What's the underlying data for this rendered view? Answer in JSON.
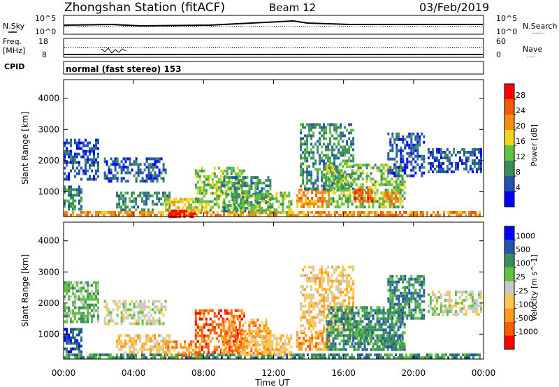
{
  "header": {
    "title": "Zhongshan Station (fitACF)",
    "beam": "Beam 12",
    "date": "03/Feb/2019"
  },
  "sky_panel": {
    "label": "N.Sky",
    "left_ticks": [
      "10^5",
      "10^0"
    ],
    "right_label": "N.Search",
    "right_ticks": [
      "10^5",
      "10^0"
    ],
    "legend_dots": "......."
  },
  "freq_panel": {
    "label_line1": "Freq.",
    "label_line2": "[MHz]",
    "left_ticks": [
      "18",
      "8"
    ],
    "right_label": "Nave",
    "right_ticks": [
      "60",
      "0"
    ],
    "legend_dots": "...."
  },
  "cpid": {
    "label": "CPID",
    "text": "normal (fast stereo) 153"
  },
  "colors": {
    "power": [
      "#0000ff",
      "#2255aa",
      "#3a8c5a",
      "#5fc13f",
      "#f2d21b",
      "#f28c12",
      "#f0580e",
      "#ff0000"
    ],
    "velocity": [
      "#ff0000",
      "#ff5a00",
      "#ff9a1a",
      "#ffc84d",
      "#c8c8c8",
      "#5fc13f",
      "#3a8c5a",
      "#2255aa",
      "#0000ff"
    ]
  },
  "chart_data": [
    {
      "type": "heatmap",
      "name": "power",
      "ylabel": "Slant Range [km]",
      "y_ticks": [
        1000,
        2000,
        3000,
        4000
      ],
      "ylim": [
        200,
        4600
      ],
      "x_ticks": [
        "00:00",
        "04:00",
        "08:00",
        "12:00",
        "16:00",
        "20:00",
        "00:00"
      ],
      "colorbar": {
        "label": "Power [dB]",
        "ticks": [
          "4",
          "8",
          "12",
          "16",
          "20",
          "24",
          "28"
        ]
      },
      "blobs": [
        {
          "t0": 0.0,
          "t1": 23.8,
          "r0": 220,
          "r1": 380,
          "level": 5
        },
        {
          "t0": 0.0,
          "t1": 1.0,
          "r0": 400,
          "r1": 1200,
          "level": 2
        },
        {
          "t0": 0.0,
          "t1": 2.0,
          "r0": 1400,
          "r1": 2700,
          "level": 1
        },
        {
          "t0": 2.3,
          "t1": 5.8,
          "r0": 1300,
          "r1": 2100,
          "level": 1
        },
        {
          "t0": 3.0,
          "t1": 6.0,
          "r0": 400,
          "r1": 1000,
          "level": 2
        },
        {
          "t0": 5.8,
          "t1": 7.8,
          "r0": 300,
          "r1": 800,
          "level": 4
        },
        {
          "t0": 6.0,
          "t1": 7.5,
          "r0": 220,
          "r1": 420,
          "level": 7
        },
        {
          "t0": 7.5,
          "t1": 10.3,
          "r0": 450,
          "r1": 1800,
          "level": 3
        },
        {
          "t0": 9.0,
          "t1": 11.8,
          "r0": 400,
          "r1": 1500,
          "level": 2
        },
        {
          "t0": 10.2,
          "t1": 13.0,
          "r0": 300,
          "r1": 1000,
          "level": 3
        },
        {
          "t0": 13.3,
          "t1": 15.2,
          "r0": 500,
          "r1": 1100,
          "level": 5
        },
        {
          "t0": 13.5,
          "t1": 16.5,
          "r0": 1100,
          "r1": 3200,
          "level": 2
        },
        {
          "t0": 15.0,
          "t1": 19.5,
          "r0": 500,
          "r1": 1900,
          "level": 3
        },
        {
          "t0": 16.5,
          "t1": 17.6,
          "r0": 700,
          "r1": 1100,
          "level": 6
        },
        {
          "t0": 18.2,
          "t1": 19.2,
          "r0": 600,
          "r1": 1000,
          "level": 5
        },
        {
          "t0": 18.5,
          "t1": 20.6,
          "r0": 1500,
          "r1": 2900,
          "level": 1
        },
        {
          "t0": 20.8,
          "t1": 23.8,
          "r0": 1650,
          "r1": 2400,
          "level": 1
        }
      ]
    },
    {
      "type": "heatmap",
      "name": "velocity",
      "ylabel": "Slant Range [km]",
      "y_ticks": [
        1000,
        2000,
        3000,
        4000
      ],
      "ylim": [
        200,
        4600
      ],
      "x_ticks": [
        "00:00",
        "04:00",
        "08:00",
        "12:00",
        "16:00",
        "20:00",
        "00:00"
      ],
      "xlabel": "Time UT",
      "colorbar": {
        "label": "Velocity [m s^-1]",
        "ticks": [
          "1000",
          "500",
          "100",
          "25",
          "-25",
          "-100",
          "-500",
          "-1000"
        ]
      },
      "blobs": [
        {
          "t0": 0.0,
          "t1": 23.8,
          "r0": 220,
          "r1": 380,
          "level": 6
        },
        {
          "t0": 0.0,
          "t1": 1.0,
          "r0": 400,
          "r1": 1200,
          "level": 7
        },
        {
          "t0": 0.0,
          "t1": 2.0,
          "r0": 1400,
          "r1": 2700,
          "level": 5
        },
        {
          "t0": 2.3,
          "t1": 5.8,
          "r0": 1300,
          "r1": 2100,
          "level": 4
        },
        {
          "t0": 3.0,
          "t1": 6.0,
          "r0": 400,
          "r1": 1000,
          "level": 3
        },
        {
          "t0": 5.8,
          "t1": 7.8,
          "r0": 300,
          "r1": 800,
          "level": 2
        },
        {
          "t0": 7.5,
          "t1": 10.3,
          "r0": 450,
          "r1": 1800,
          "level": 1
        },
        {
          "t0": 9.0,
          "t1": 11.8,
          "r0": 400,
          "r1": 1500,
          "level": 2
        },
        {
          "t0": 10.2,
          "t1": 13.0,
          "r0": 300,
          "r1": 1000,
          "level": 3
        },
        {
          "t0": 13.3,
          "t1": 15.2,
          "r0": 500,
          "r1": 1100,
          "level": 2
        },
        {
          "t0": 13.5,
          "t1": 16.5,
          "r0": 1100,
          "r1": 3200,
          "level": 3
        },
        {
          "t0": 15.0,
          "t1": 19.5,
          "r0": 500,
          "r1": 1900,
          "level": 6
        },
        {
          "t0": 16.5,
          "t1": 17.6,
          "r0": 700,
          "r1": 1100,
          "level": 6
        },
        {
          "t0": 18.2,
          "t1": 19.2,
          "r0": 600,
          "r1": 1000,
          "level": 6
        },
        {
          "t0": 18.5,
          "t1": 20.6,
          "r0": 1500,
          "r1": 2900,
          "level": 6
        },
        {
          "t0": 20.8,
          "t1": 23.8,
          "r0": 1650,
          "r1": 2400,
          "level": 4
        }
      ]
    }
  ]
}
